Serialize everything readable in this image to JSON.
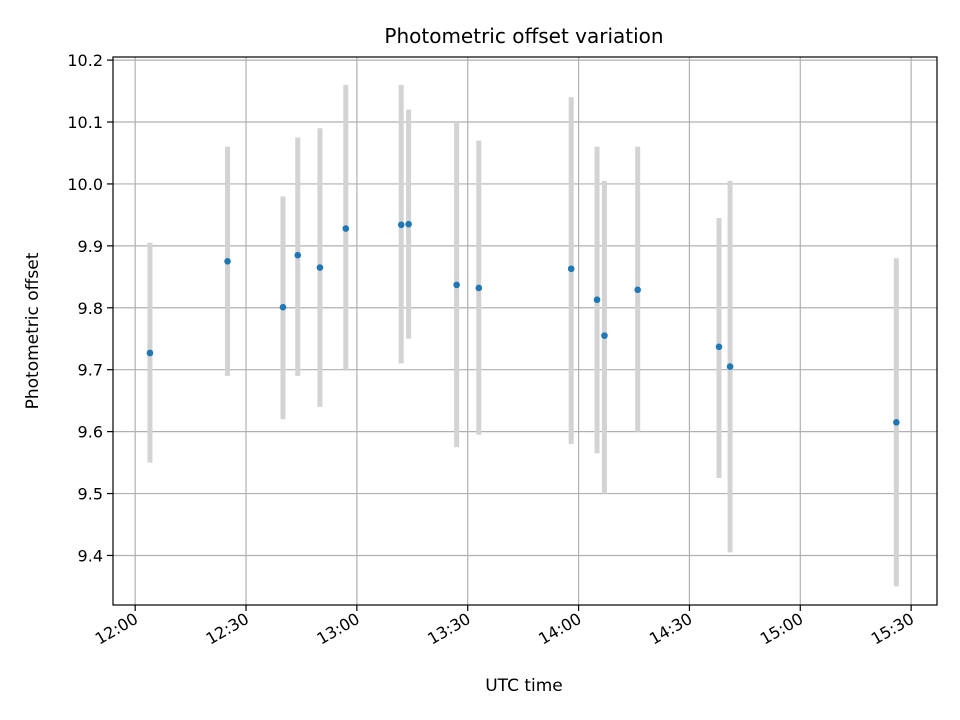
{
  "chart_data": {
    "type": "scatter",
    "title": "Photometric offset variation",
    "xlabel": "UTC time",
    "ylabel": "Photometric offset",
    "x_tick_labels": [
      "12:00",
      "12:30",
      "13:00",
      "13:30",
      "14:00",
      "14:30",
      "15:00",
      "15:30"
    ],
    "y_tick_labels": [
      "9.4",
      "9.5",
      "9.6",
      "9.7",
      "9.8",
      "9.9",
      "10.0",
      "10.1",
      "10.2"
    ],
    "xlim": [
      "11:54",
      "15:37"
    ],
    "ylim": [
      9.32,
      10.205
    ],
    "grid": true,
    "colors": {
      "point": "#1f77b4",
      "errorbar": "#d3d3d3",
      "grid": "#b0b0b0"
    },
    "points": [
      {
        "time": "12:04",
        "y": 9.727,
        "low": 9.55,
        "high": 9.905
      },
      {
        "time": "12:25",
        "y": 9.875,
        "low": 9.69,
        "high": 10.06
      },
      {
        "time": "12:40",
        "y": 9.801,
        "low": 9.62,
        "high": 9.98
      },
      {
        "time": "12:44",
        "y": 9.885,
        "low": 9.69,
        "high": 10.075
      },
      {
        "time": "12:50",
        "y": 9.865,
        "low": 9.64,
        "high": 10.09
      },
      {
        "time": "12:57",
        "y": 9.928,
        "low": 9.7,
        "high": 10.16
      },
      {
        "time": "13:12",
        "y": 9.934,
        "low": 9.71,
        "high": 10.16
      },
      {
        "time": "13:14",
        "y": 9.935,
        "low": 9.75,
        "high": 10.12
      },
      {
        "time": "13:27",
        "y": 9.837,
        "low": 9.575,
        "high": 10.1
      },
      {
        "time": "13:33",
        "y": 9.832,
        "low": 9.595,
        "high": 10.07
      },
      {
        "time": "13:58",
        "y": 9.863,
        "low": 9.58,
        "high": 10.14
      },
      {
        "time": "14:05",
        "y": 9.813,
        "low": 9.565,
        "high": 10.06
      },
      {
        "time": "14:07",
        "y": 9.755,
        "low": 9.5,
        "high": 10.005
      },
      {
        "time": "14:16",
        "y": 9.829,
        "low": 9.6,
        "high": 10.06
      },
      {
        "time": "14:38",
        "y": 9.737,
        "low": 9.525,
        "high": 9.945
      },
      {
        "time": "14:41",
        "y": 9.705,
        "low": 9.405,
        "high": 10.005
      },
      {
        "time": "15:26",
        "y": 9.615,
        "low": 9.35,
        "high": 9.88
      }
    ]
  }
}
